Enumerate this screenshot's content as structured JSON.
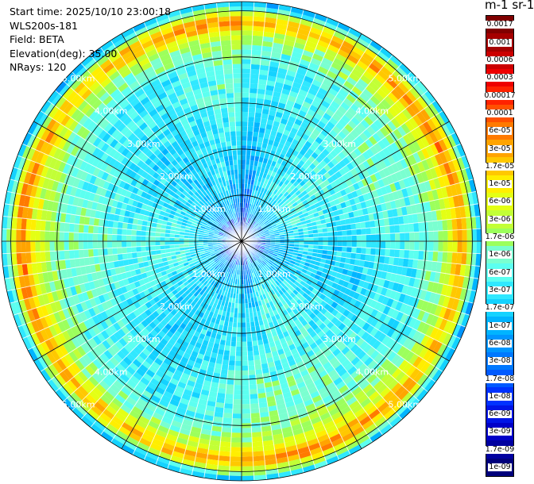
{
  "info": {
    "start_time": "Start time: 2025/10/10 23:00:18",
    "instrument": "WLS200s-181",
    "field": "Field: BETA",
    "elevation": "Elevation(deg): 35.00",
    "nrays": "NRays: 120"
  },
  "units_label": "m-1 sr-1",
  "colors": {
    "grid": "#000000",
    "range_label": "#ffffff",
    "outside_circle": "#ffffff"
  },
  "chart_data": {
    "type": "heatmap",
    "projection": "polar-ppi",
    "title": "",
    "n_rays": 120,
    "max_range_km": 5.2,
    "range_rings_km": [
      1,
      2,
      3,
      4,
      5
    ],
    "range_ring_labels": [
      "1.00km",
      "2.00km",
      "3.00km",
      "4.00km",
      "5.00km"
    ],
    "radial_lines_deg": [
      0,
      30,
      60,
      90,
      120,
      150,
      180,
      210,
      240,
      270,
      300,
      330
    ],
    "colorbar": {
      "position": "right",
      "ticks": [
        "0.0017",
        "0.001",
        "0.0006",
        "0.0003",
        "0.00017",
        "0.0001",
        "6e-05",
        "3e-05",
        "1.7e-05",
        "1e-05",
        "6e-06",
        "3e-06",
        "1.7e-06",
        "1e-06",
        "6e-07",
        "3e-07",
        "1.7e-07",
        "1e-07",
        "6e-08",
        "3e-08",
        "1.7e-08",
        "1e-08",
        "6e-09",
        "3e-09",
        "1.7e-09",
        "1e-09"
      ],
      "colors": [
        "#800000",
        "#a50000",
        "#cc0000",
        "#ee0000",
        "#ff2200",
        "#ff5000",
        "#ff7a00",
        "#ffa400",
        "#ffc800",
        "#ffee00",
        "#e4ff14",
        "#c2ff36",
        "#9cff5c",
        "#7affd0",
        "#5cfff0",
        "#30e8ff",
        "#14d2ff",
        "#00b4ff",
        "#0096ff",
        "#0078ff",
        "#005aff",
        "#0032ff",
        "#0014e6",
        "#0000c8",
        "#0000a0",
        "#00007c"
      ]
    },
    "beta_profile": {
      "range_km": [
        0.0,
        0.3,
        0.5,
        0.8,
        1.2,
        1.8,
        2.5,
        3.2,
        3.8,
        4.3,
        4.55,
        4.7,
        4.85,
        5.0,
        5.1,
        5.2
      ],
      "level_index": [
        20,
        18,
        17,
        16,
        15,
        15,
        15,
        14,
        14,
        12,
        10,
        7,
        8,
        12,
        15,
        17
      ]
    },
    "wedge_ray_sectors_deg": [
      [
        -12,
        12
      ],
      [
        165,
        195
      ]
    ]
  }
}
